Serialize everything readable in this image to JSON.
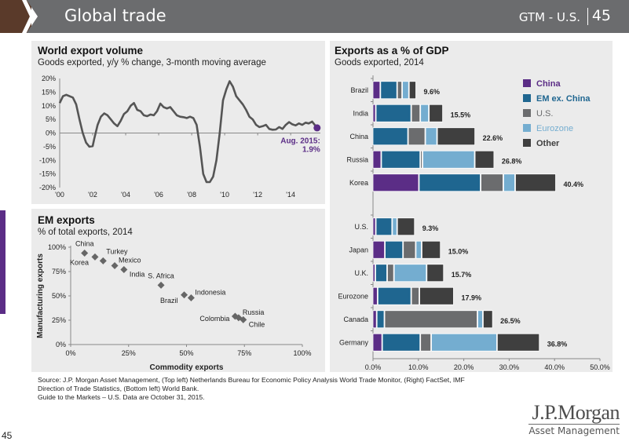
{
  "header": {
    "title": "Global trade",
    "gtm_label": "GTM - U.S.",
    "page_number": "45"
  },
  "colors": {
    "header_bg": "#6b6c6e",
    "header_accent": "#5a3a2a",
    "panel_bg": "#ebebeb",
    "china": "#5b2d86",
    "em_ex_china": "#1f6690",
    "us": "#6b6c6e",
    "eurozone": "#74add0",
    "other": "#3f3f3f",
    "line": "#555555",
    "highlight": "#5b2d86",
    "scatter": "#666666"
  },
  "chart_data": [
    {
      "type": "line",
      "title": "World export volume",
      "subtitle": "Goods exported, y/y % change, 3-month moving average",
      "xlabel": "",
      "ylabel": "",
      "x_ticks": [
        "'00",
        "'02",
        "'04",
        "'06",
        "'08",
        "'10",
        "'12",
        "'14"
      ],
      "x_tick_values": [
        2000,
        2002,
        2004,
        2006,
        2008,
        2010,
        2012,
        2014
      ],
      "y_ticks": [
        "20%",
        "15%",
        "10%",
        "5%",
        "0%",
        "-5%",
        "-10%",
        "-15%",
        "-20%"
      ],
      "xlim": [
        2000,
        2015.8
      ],
      "ylim": [
        -20,
        20
      ],
      "series": [
        {
          "name": "World export volume",
          "x": [
            2000.0,
            2000.2,
            2000.4,
            2000.6,
            2000.8,
            2001.0,
            2001.2,
            2001.4,
            2001.6,
            2001.8,
            2002.0,
            2002.1,
            2002.3,
            2002.5,
            2002.7,
            2002.9,
            2003.1,
            2003.3,
            2003.5,
            2003.7,
            2003.9,
            2004.1,
            2004.3,
            2004.5,
            2004.7,
            2004.9,
            2005.1,
            2005.3,
            2005.5,
            2005.7,
            2005.9,
            2006.1,
            2006.3,
            2006.5,
            2006.7,
            2006.9,
            2007.1,
            2007.3,
            2007.5,
            2007.7,
            2007.9,
            2008.1,
            2008.3,
            2008.5,
            2008.7,
            2008.9,
            2009.1,
            2009.3,
            2009.5,
            2009.7,
            2009.9,
            2010.1,
            2010.3,
            2010.5,
            2010.7,
            2010.9,
            2011.1,
            2011.3,
            2011.5,
            2011.7,
            2011.9,
            2012.1,
            2012.3,
            2012.5,
            2012.7,
            2012.9,
            2013.1,
            2013.3,
            2013.5,
            2013.7,
            2013.9,
            2014.1,
            2014.3,
            2014.5,
            2014.7,
            2014.9,
            2015.1,
            2015.3,
            2015.6
          ],
          "y": [
            11,
            13.5,
            14,
            13.5,
            13,
            10.5,
            5,
            0,
            -3.5,
            -5,
            -4.8,
            -2,
            3,
            6,
            7.2,
            6.5,
            5,
            3.5,
            2.5,
            4.5,
            7,
            8,
            10,
            11,
            8.5,
            8,
            6.5,
            6.2,
            6.8,
            6.5,
            8,
            10.8,
            9.5,
            9,
            9.5,
            8,
            6.5,
            6,
            5.8,
            5.5,
            6,
            5.5,
            3,
            -5,
            -15,
            -18,
            -18,
            -16,
            -10,
            0,
            12,
            16,
            19,
            17,
            13.5,
            12,
            10.5,
            8.5,
            6,
            5,
            3,
            2.2,
            2.5,
            3,
            1.5,
            1.2,
            1.3,
            2.2,
            1.5,
            3,
            4,
            3.2,
            2.8,
            3.5,
            3,
            3.8,
            3.5,
            4.2,
            1.9
          ]
        }
      ],
      "annotation": {
        "label_line1": "Aug. 2015:",
        "label_line2": "1.9%",
        "x": 2015.6,
        "y": 1.9
      }
    },
    {
      "type": "scatter",
      "title": "EM exports",
      "subtitle": "% of total exports, 2014",
      "xlabel": "Commodity exports",
      "ylabel": "Manufacturing exports",
      "x_ticks": [
        "0%",
        "25%",
        "50%",
        "75%",
        "100%"
      ],
      "y_ticks": [
        "100%",
        "75%",
        "50%",
        "25%",
        "0%"
      ],
      "xlim": [
        0,
        100
      ],
      "ylim": [
        0,
        100
      ],
      "points": [
        {
          "label": "China",
          "x": 6,
          "y": 94,
          "label_pos": "above"
        },
        {
          "label": "Korea",
          "x": 10.5,
          "y": 90,
          "label_pos": "below-left"
        },
        {
          "label": "Turkey",
          "x": 14,
          "y": 86,
          "label_pos": "above-right"
        },
        {
          "label": "Mexico",
          "x": 19,
          "y": 81,
          "label_pos": "right-up"
        },
        {
          "label": "India",
          "x": 23,
          "y": 77,
          "label_pos": "below-right"
        },
        {
          "label": "S. Africa",
          "x": 39,
          "y": 61,
          "label_pos": "above"
        },
        {
          "label": "Brazil",
          "x": 49,
          "y": 51,
          "label_pos": "below-left"
        },
        {
          "label": "Indonesia",
          "x": 52,
          "y": 48,
          "label_pos": "right-up"
        },
        {
          "label": "Colombia",
          "x": 71,
          "y": 29,
          "label_pos": "left"
        },
        {
          "label": "Russia",
          "x": 72.5,
          "y": 27.5,
          "label_pos": "right-up"
        },
        {
          "label": "Chile",
          "x": 74.5,
          "y": 25.5,
          "label_pos": "below-right"
        }
      ]
    },
    {
      "type": "bar",
      "orientation": "horizontal-stacked",
      "title": "Exports as a % of GDP",
      "subtitle": "Goods exported, 2014",
      "xlabel": "",
      "ylabel": "",
      "x_ticks": [
        "0.0%",
        "10.0%",
        "20.0%",
        "30.0%",
        "40.0%",
        "50.0%"
      ],
      "xlim": [
        0,
        50
      ],
      "legend": {
        "position": "top-right",
        "entries": [
          "China",
          "EM ex. China",
          "U.S.",
          "Eurozone",
          "Other"
        ]
      },
      "series_names": [
        "China",
        "EM ex. China",
        "U.S.",
        "Eurozone",
        "Other"
      ],
      "groups": [
        {
          "name": "emerging",
          "categories": [
            {
              "label": "Brazil",
              "total_label": "9.6%",
              "values": [
                1.7,
                3.7,
                1.1,
                1.5,
                1.6
              ]
            },
            {
              "label": "India",
              "total_label": "15.5%",
              "values": [
                0.7,
                7.8,
                2.0,
                1.9,
                3.1
              ]
            },
            {
              "label": "China",
              "total_label": "22.6%",
              "values": [
                0.0,
                7.8,
                3.8,
                2.6,
                8.4
              ]
            },
            {
              "label": "Russia",
              "total_label": "26.8%",
              "values": [
                1.9,
                8.6,
                0.5,
                11.5,
                4.3
              ]
            },
            {
              "label": "Korea",
              "total_label": "40.4%",
              "values": [
                10.2,
                13.6,
                5.0,
                2.6,
                9.0
              ]
            }
          ]
        },
        {
          "name": "developed",
          "categories": [
            {
              "label": "U.S.",
              "total_label": "9.3%",
              "values": [
                0.7,
                3.6,
                0.0,
                1.1,
                3.9
              ]
            },
            {
              "label": "Japan",
              "total_label": "15.0%",
              "values": [
                2.7,
                4.0,
                2.8,
                1.3,
                4.2
              ]
            },
            {
              "label": "U.K.",
              "total_label": "15.7%",
              "values": [
                0.6,
                2.6,
                1.5,
                7.2,
                3.8
              ]
            },
            {
              "label": "Eurozone",
              "total_label": "17.9%",
              "values": [
                1.1,
                7.4,
                1.8,
                0.0,
                7.6
              ]
            },
            {
              "label": "Canada",
              "total_label": "26.5%",
              "values": [
                0.9,
                1.7,
                20.5,
                1.2,
                2.2
              ]
            },
            {
              "label": "Germany",
              "total_label": "36.8%",
              "values": [
                2.1,
                8.4,
                2.4,
                14.5,
                9.4
              ]
            }
          ]
        }
      ]
    }
  ],
  "footer": {
    "source_line1": "Source: J.P. Morgan Asset Management, (Top left) Netherlands Bureau for Economic Policy Analysis World Trade Monitor, (Right) FactSet, IMF",
    "source_line2": "Direction of Trade Statistics, (Bottom left) World Bank.",
    "source_line3": "Guide to the Markets – U.S. Data are October 31, 2015.",
    "page_number": "45",
    "logo_line1": "J.P.Morgan",
    "logo_line2": "Asset Management"
  }
}
